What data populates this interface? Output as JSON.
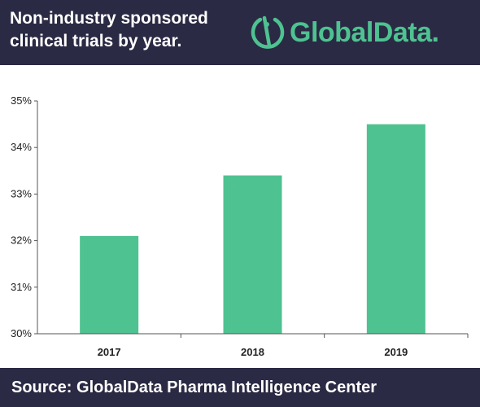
{
  "header": {
    "title": "Non-industry sponsored clinical trials by year.",
    "logo_text": "GlobalData."
  },
  "footer": {
    "source": "Source:  GlobalData Pharma Intelligence Center"
  },
  "colors": {
    "header_bg": "#2b2a44",
    "bar": "#4ec291",
    "logo": "#4ec291",
    "axis": "#555555"
  },
  "chart_data": {
    "type": "bar",
    "title": "Non-industry sponsored clinical trials by year.",
    "categories": [
      "2017",
      "2018",
      "2019"
    ],
    "values": [
      32.1,
      33.4,
      34.5
    ],
    "ylim": [
      30,
      35
    ],
    "yticks": [
      "30%",
      "31%",
      "32%",
      "33%",
      "34%",
      "35%"
    ],
    "xlabel": "",
    "ylabel": "",
    "grid": false,
    "legend": "none"
  }
}
